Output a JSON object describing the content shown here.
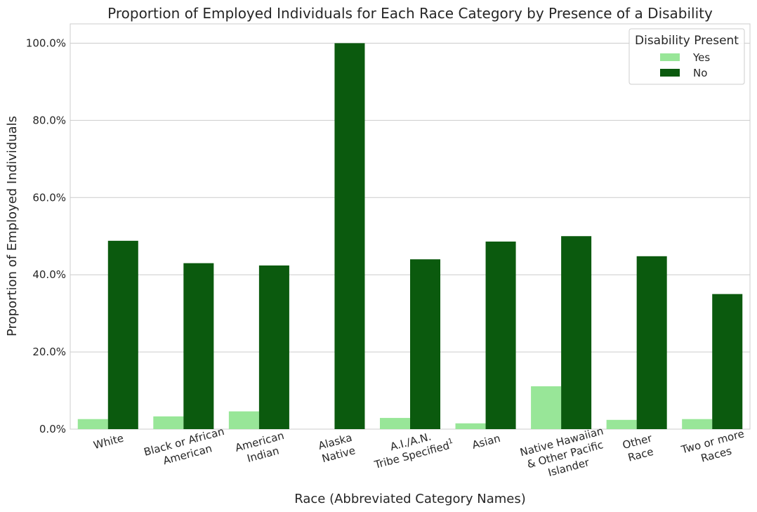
{
  "chart_data": {
    "type": "bar",
    "title": "Proportion of Employed Individuals for Each Race Category by Presence of a Disability",
    "xlabel": "Race (Abbreviated Category Names)",
    "ylabel": "Proportion of Employed Individuals",
    "ylim": [
      0,
      105
    ],
    "yticks": [
      0,
      20,
      40,
      60,
      80,
      100
    ],
    "ytick_labels": [
      "0.0%",
      "20.0%",
      "40.0%",
      "60.0%",
      "80.0%",
      "100.0%"
    ],
    "grid": "horizontal",
    "categories": [
      [
        "White"
      ],
      [
        "Black or African",
        "American"
      ],
      [
        "American",
        "Indian"
      ],
      [
        "Alaska",
        "Native"
      ],
      [
        "A.I./A.N.",
        "Tribe Specified"
      ],
      [
        "Asian"
      ],
      [
        "Native Hawaiian",
        "& Other Pacific",
        "Islander"
      ],
      [
        "Other",
        "Race"
      ],
      [
        "Two or more",
        "Races"
      ]
    ],
    "footnote_marker": "1",
    "footnote_category_index": 4,
    "legend": {
      "title": "Disability Present",
      "position": "top-right"
    },
    "series": [
      {
        "name": "Yes",
        "color": "#98e698",
        "values": [
          2.6,
          3.3,
          4.6,
          0.0,
          2.9,
          1.5,
          11.1,
          2.4,
          2.6
        ]
      },
      {
        "name": "No",
        "color": "#0b5a0e",
        "values": [
          48.8,
          43.0,
          42.4,
          100.0,
          44.0,
          48.6,
          50.0,
          44.8,
          35.0
        ]
      }
    ]
  }
}
